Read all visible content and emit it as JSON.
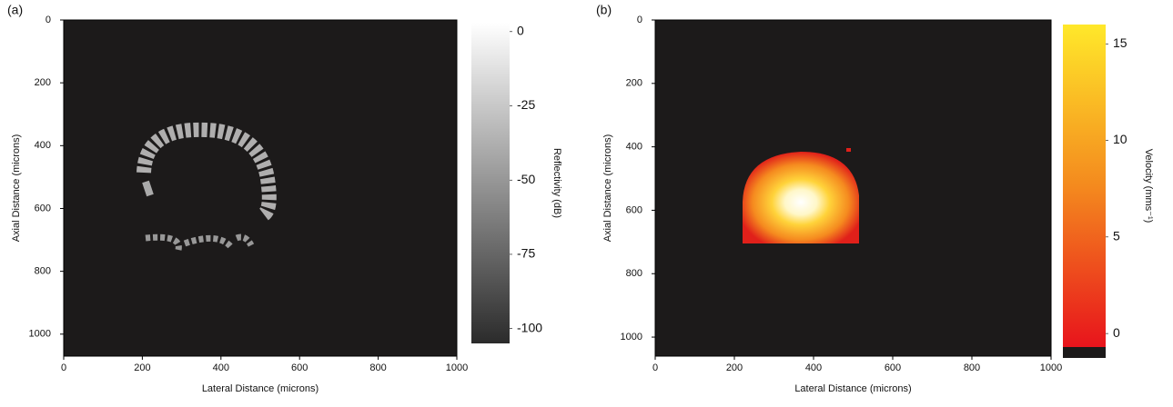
{
  "chart_data": [
    {
      "type": "heatmap",
      "panel_label": "(a)",
      "xlabel": "Lateral Distance (microns)",
      "ylabel": "Axial Distance (microns)",
      "xlim": [
        0,
        1000
      ],
      "xticks": [
        0,
        200,
        400,
        600,
        800,
        1000
      ],
      "ylim": [
        0,
        1070
      ],
      "yticks": [
        0,
        200,
        400,
        600,
        800,
        1000
      ],
      "y_inverted": true,
      "colorbar_label": "Reflectivity (dB)",
      "zlim": [
        -105,
        3
      ],
      "zticks": [
        0,
        -25,
        -50,
        -75,
        -100
      ],
      "colormap": [
        "#2b2b2b",
        "#ffffff"
      ]
    },
    {
      "type": "heatmap",
      "panel_label": "(b)",
      "xlabel": "Lateral Distance (microns)",
      "ylabel": "Axial Distance (microns)",
      "xlim": [
        0,
        1000
      ],
      "xticks": [
        0,
        200,
        400,
        600,
        800,
        1000
      ],
      "ylim": [
        0,
        1060
      ],
      "yticks": [
        0,
        200,
        400,
        600,
        800,
        1000
      ],
      "y_inverted": true,
      "colorbar_label": "Velocity (mms⁻¹)",
      "zlim": [
        -0.7,
        16
      ],
      "zticks": [
        15,
        10,
        5,
        0
      ],
      "colormap": [
        "#e8141c",
        "#f48a1e",
        "#ffe82a"
      ]
    }
  ]
}
